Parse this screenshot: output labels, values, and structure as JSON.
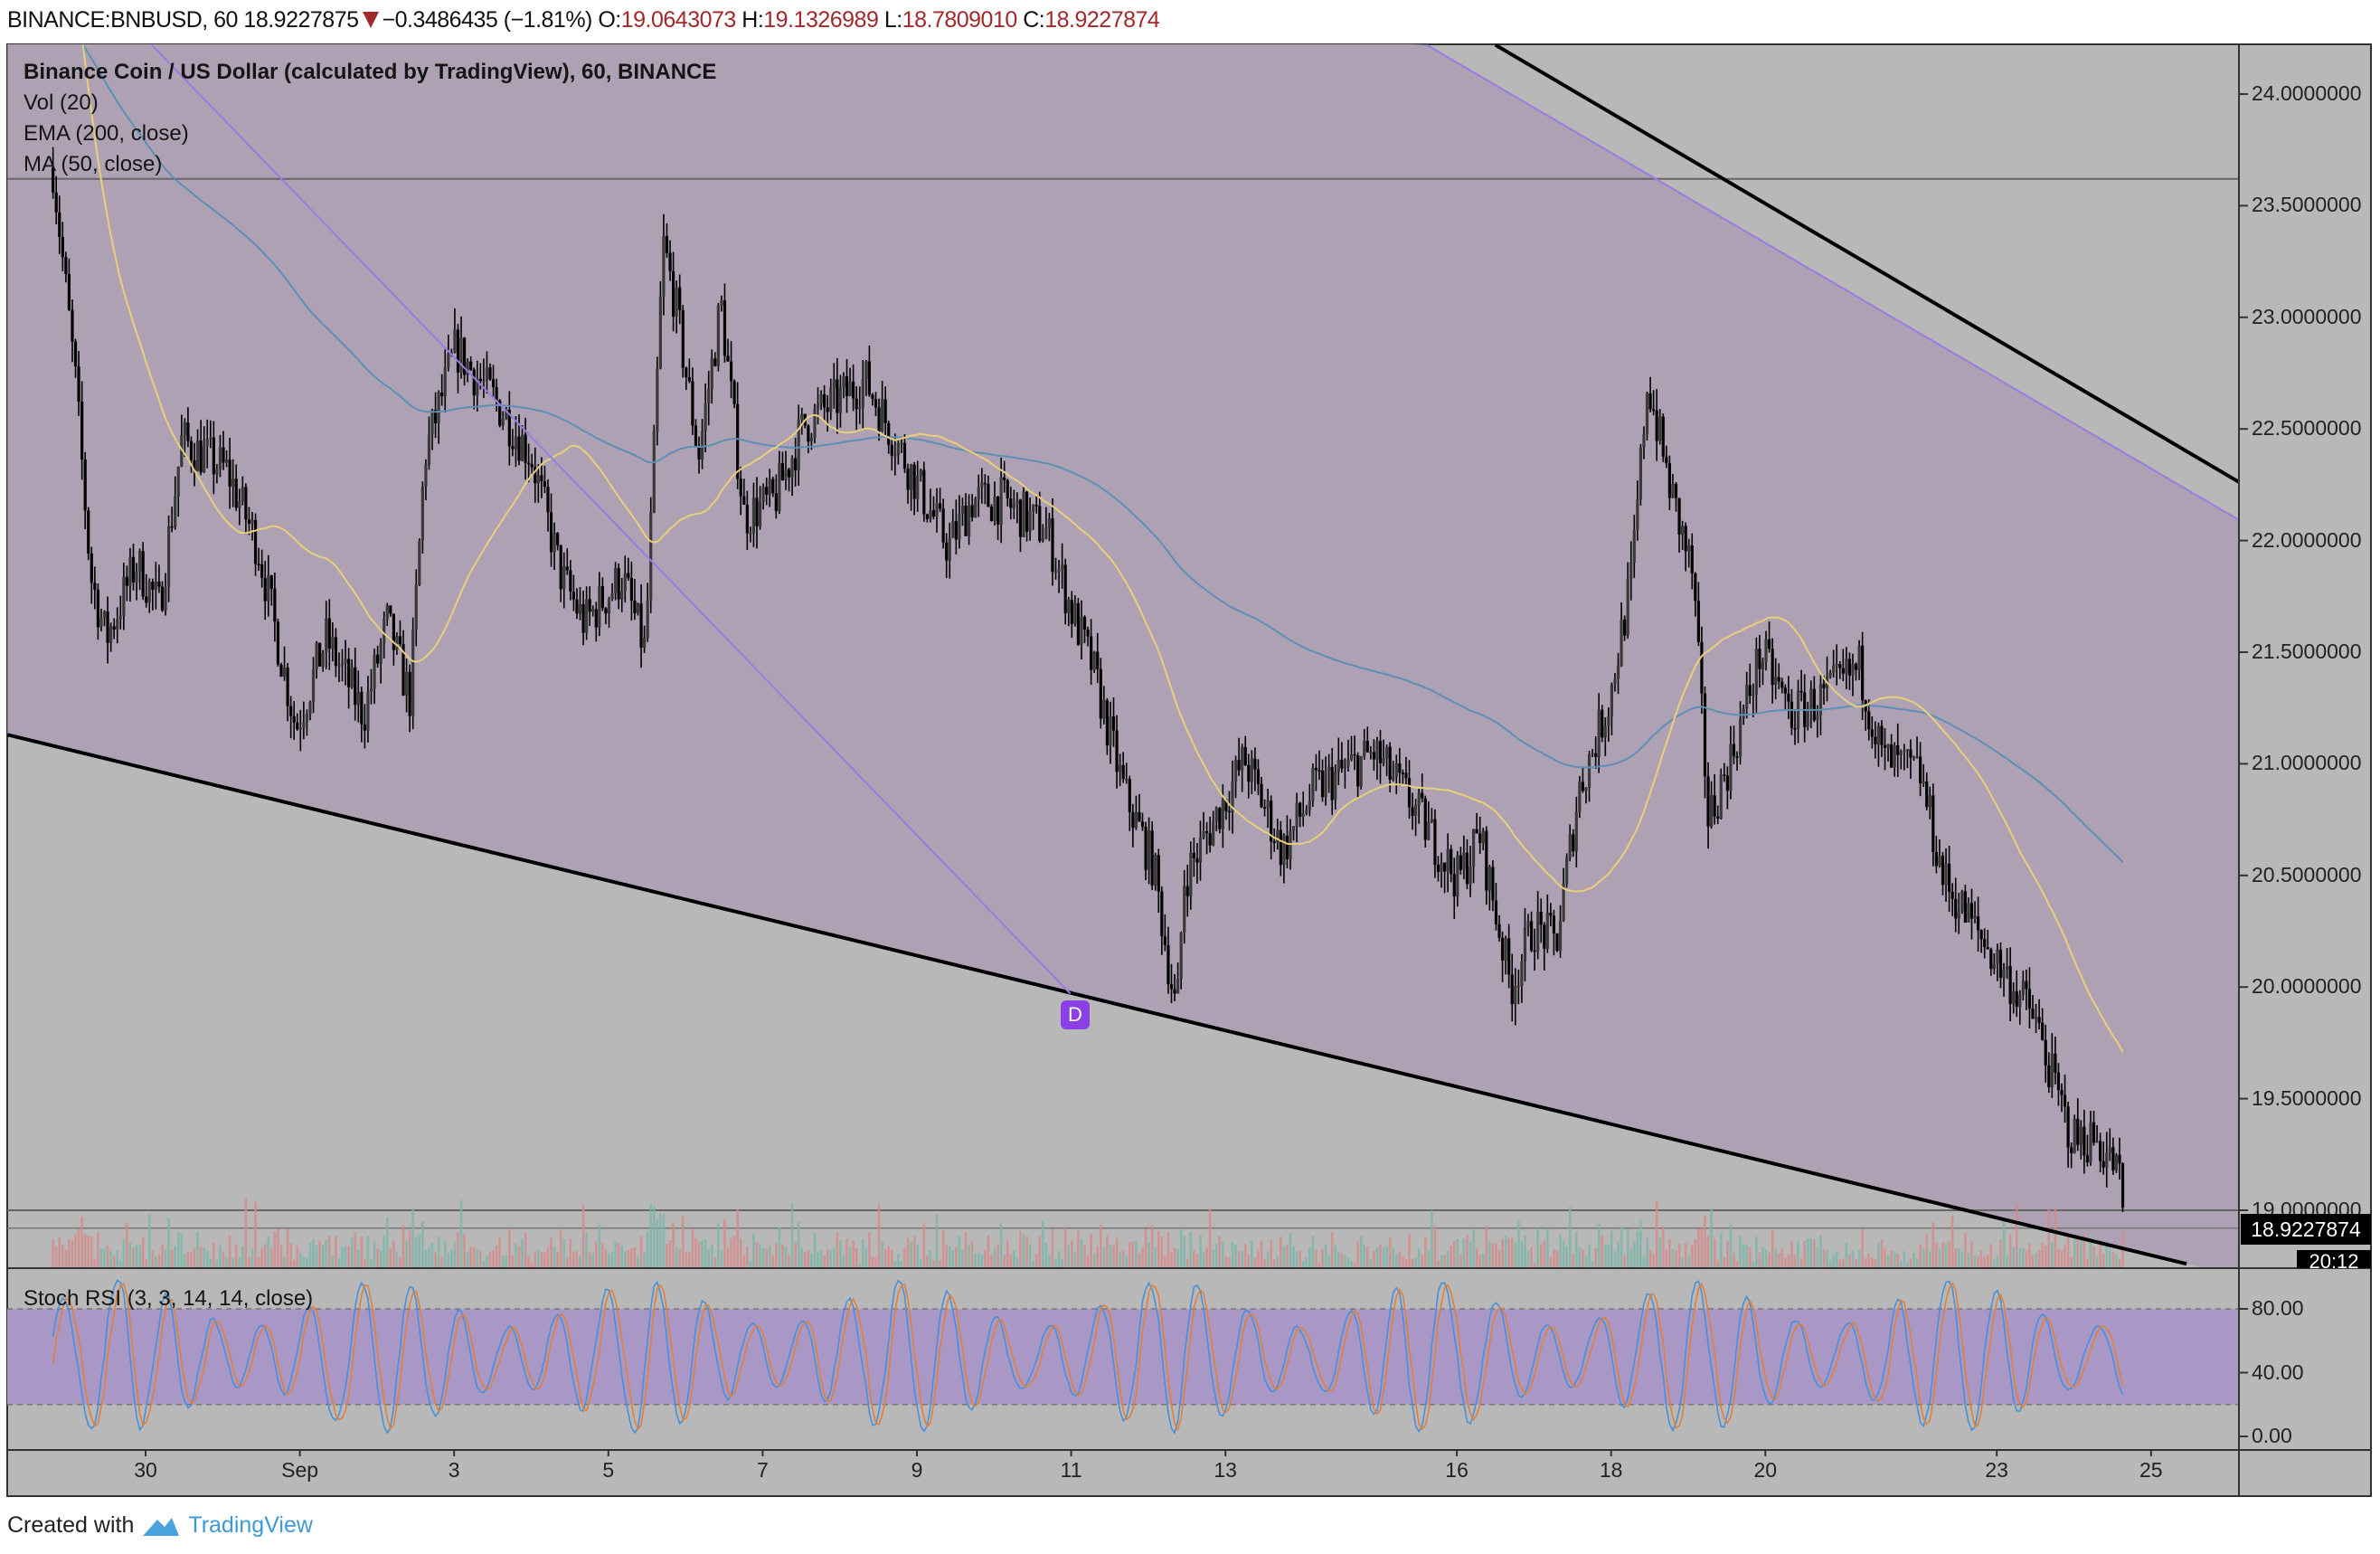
{
  "header": {
    "symbol": "BINANCE:BNBUSD, 60",
    "last": "18.9227875",
    "change": "−0.3486435 (−1.81%)",
    "o_label": "O:",
    "o": "19.0643073",
    "h_label": "H:",
    "h": "19.1326989",
    "l_label": "L:",
    "l": "18.7809010",
    "c_label": "C:",
    "c": "18.9227874"
  },
  "legend": {
    "title": "Binance Coin / US Dollar (calculated by TradingView), 60, BINANCE",
    "vol": "Vol (20)",
    "ema": "EMA (200, close)",
    "ma": "MA (50, close)",
    "stoch": "Stoch RSI (3, 3, 14, 14, close)"
  },
  "price_axis": [
    "24.0000000",
    "23.5000000",
    "23.0000000",
    "22.5000000",
    "22.0000000",
    "21.5000000",
    "21.0000000",
    "20.5000000",
    "20.0000000",
    "19.5000000",
    "19.0000000"
  ],
  "last_price_label": "18.9227874",
  "countdown": "20:12",
  "rsi_axis": [
    "80.00",
    "40.00",
    "0.00"
  ],
  "time_axis": [
    {
      "label": "30",
      "day": 0
    },
    {
      "label": "Sep",
      "day": 2
    },
    {
      "label": "3",
      "day": 4
    },
    {
      "label": "5",
      "day": 6
    },
    {
      "label": "7",
      "day": 8
    },
    {
      "label": "9",
      "day": 10
    },
    {
      "label": "11",
      "day": 12
    },
    {
      "label": "13",
      "day": 14
    },
    {
      "label": "16",
      "day": 17
    },
    {
      "label": "18",
      "day": 19
    },
    {
      "label": "20",
      "day": 21
    },
    {
      "label": "23",
      "day": 24
    },
    {
      "label": "25",
      "day": 26
    }
  ],
  "dividend_badge": "D",
  "footer": {
    "created": "Created with",
    "brand": "TradingView"
  },
  "colors": {
    "background": "#b8b8b8",
    "channel": "#aea1b4",
    "rsi_band": "#a997c6",
    "ma": "#e8cf7a",
    "ema": "#5d8fb5",
    "candle": "#000000",
    "down": "#a3282a"
  },
  "chart_data": {
    "type": "candlestick",
    "x_unit": "days since Aug 30 (hourly candles)",
    "price_keypoints": [
      [
        -1.2,
        23.67
      ],
      [
        -0.91,
        22.72
      ],
      [
        -0.71,
        21.84
      ],
      [
        -0.51,
        21.56
      ],
      [
        -0.12,
        21.9
      ],
      [
        0.18,
        21.7
      ],
      [
        0.47,
        22.45
      ],
      [
        1.06,
        22.31
      ],
      [
        1.46,
        21.97
      ],
      [
        1.95,
        21.16
      ],
      [
        2.34,
        21.56
      ],
      [
        2.83,
        21.22
      ],
      [
        3.13,
        21.63
      ],
      [
        3.43,
        21.29
      ],
      [
        3.62,
        22.38
      ],
      [
        4.02,
        22.86
      ],
      [
        4.61,
        22.59
      ],
      [
        5.0,
        22.38
      ],
      [
        5.39,
        21.84
      ],
      [
        5.69,
        21.63
      ],
      [
        6.18,
        21.84
      ],
      [
        6.48,
        21.5
      ],
      [
        6.71,
        23.33
      ],
      [
        6.87,
        23.06
      ],
      [
        7.17,
        22.38
      ],
      [
        7.46,
        23.06
      ],
      [
        7.76,
        22.11
      ],
      [
        8.15,
        22.18
      ],
      [
        8.54,
        22.52
      ],
      [
        9.33,
        22.72
      ],
      [
        9.92,
        22.31
      ],
      [
        10.41,
        21.97
      ],
      [
        10.71,
        22.18
      ],
      [
        11.1,
        22.18
      ],
      [
        11.69,
        22.04
      ],
      [
        11.99,
        21.7
      ],
      [
        12.28,
        21.43
      ],
      [
        12.68,
        20.88
      ],
      [
        13.07,
        20.54
      ],
      [
        13.37,
        19.86
      ],
      [
        13.46,
        20.48
      ],
      [
        13.86,
        20.75
      ],
      [
        14.25,
        21.02
      ],
      [
        14.74,
        20.61
      ],
      [
        15.14,
        20.88
      ],
      [
        15.93,
        21.05
      ],
      [
        16.42,
        20.82
      ],
      [
        17.01,
        20.48
      ],
      [
        17.3,
        20.68
      ],
      [
        17.7,
        20.0
      ],
      [
        17.99,
        20.27
      ],
      [
        18.29,
        20.2
      ],
      [
        18.58,
        20.88
      ],
      [
        18.98,
        21.29
      ],
      [
        19.27,
        21.84
      ],
      [
        19.47,
        22.72
      ],
      [
        19.76,
        22.24
      ],
      [
        20.06,
        21.84
      ],
      [
        20.26,
        20.75
      ],
      [
        20.55,
        21.02
      ],
      [
        20.94,
        21.5
      ],
      [
        21.34,
        21.22
      ],
      [
        21.73,
        21.29
      ],
      [
        22.22,
        21.43
      ],
      [
        22.52,
        21.02
      ],
      [
        23.01,
        20.95
      ],
      [
        23.31,
        20.48
      ],
      [
        23.7,
        20.27
      ],
      [
        24.09,
        20.07
      ],
      [
        24.49,
        19.86
      ],
      [
        24.78,
        19.52
      ],
      [
        24.98,
        19.32
      ],
      [
        25.28,
        19.32
      ],
      [
        25.57,
        19.18
      ],
      [
        25.67,
        18.92
      ]
    ],
    "trendlines": [
      {
        "name": "lower-support",
        "from": [
          -1.79,
          21.13
        ],
        "to": [
          26.46,
          18.76
        ],
        "color": "#000000"
      },
      {
        "name": "upper-resistance",
        "from": [
          17.5,
          24.22
        ],
        "to": [
          27.15,
          22.26
        ],
        "color": "#000000"
      },
      {
        "name": "channel-upper",
        "from": [
          16.61,
          24.22
        ],
        "to": [
          27.15,
          22.09
        ],
        "color": "#9a7be0"
      },
      {
        "name": "channel-diagonal",
        "from": [
          0.08,
          24.22
        ],
        "to": [
          11.99,
          19.97
        ],
        "color": "#9a7be0"
      }
    ],
    "horizontal_lines": [
      23.62,
      19.0
    ],
    "ylim": [
      18.72,
      24.22
    ],
    "xlim": [
      -1.79,
      27.15
    ],
    "rsi_ylim": [
      0,
      100
    ],
    "rsi_band": [
      20,
      80
    ],
    "indicators": [
      "MA 50",
      "EMA 200",
      "Volume 20",
      "Stoch RSI"
    ]
  }
}
